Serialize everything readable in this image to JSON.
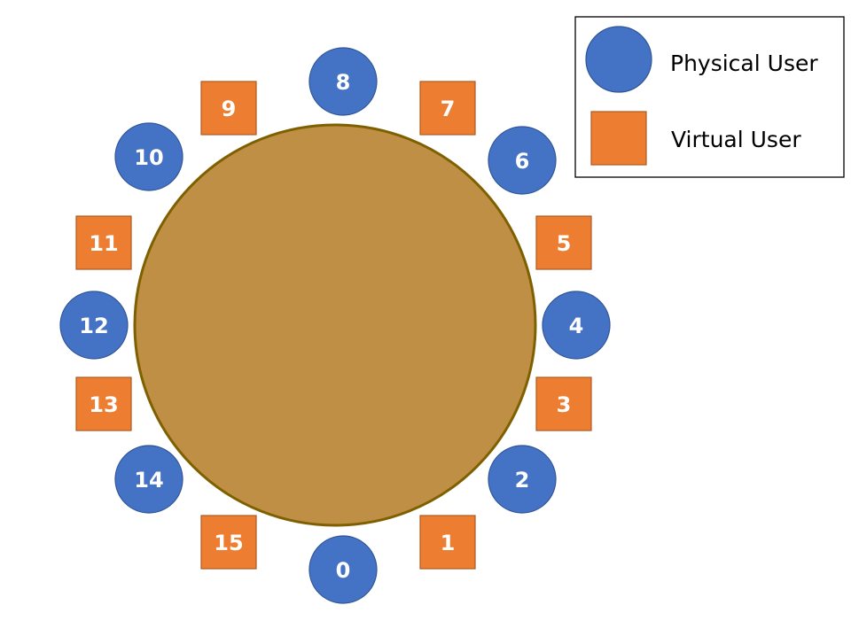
{
  "colors": {
    "table_fill": "#bf8f45",
    "table_stroke": "#7f6000",
    "physical_fill": "#4472c4",
    "physical_stroke": "#2f5597",
    "virtual_fill": "#ed7d31",
    "virtual_stroke": "#ae5a21",
    "label": "#ffffff"
  },
  "seats": [
    {
      "id": "0",
      "kind": "physical"
    },
    {
      "id": "1",
      "kind": "virtual"
    },
    {
      "id": "2",
      "kind": "physical"
    },
    {
      "id": "3",
      "kind": "virtual"
    },
    {
      "id": "4",
      "kind": "physical"
    },
    {
      "id": "5",
      "kind": "virtual"
    },
    {
      "id": "6",
      "kind": "physical"
    },
    {
      "id": "7",
      "kind": "virtual"
    },
    {
      "id": "8",
      "kind": "physical"
    },
    {
      "id": "9",
      "kind": "virtual"
    },
    {
      "id": "10",
      "kind": "physical"
    },
    {
      "id": "11",
      "kind": "virtual"
    },
    {
      "id": "12",
      "kind": "physical"
    },
    {
      "id": "13",
      "kind": "virtual"
    },
    {
      "id": "14",
      "kind": "physical"
    },
    {
      "id": "15",
      "kind": "virtual"
    }
  ],
  "legend": {
    "physical_label": "Physical User",
    "virtual_label": "Virtual User"
  }
}
